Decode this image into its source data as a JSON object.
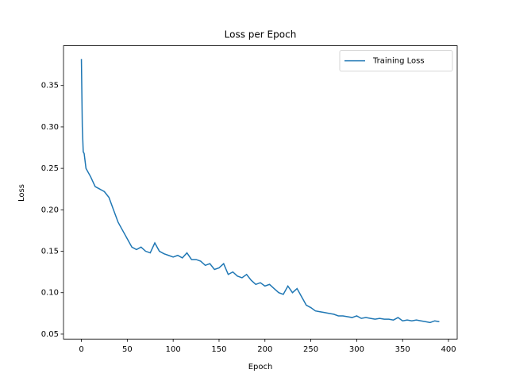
{
  "chart_data": {
    "type": "line",
    "title": "Loss per Epoch",
    "x_label": "Epoch",
    "y_label": "Loss",
    "x": [
      0,
      1,
      2,
      3,
      5,
      10,
      15,
      20,
      25,
      30,
      35,
      40,
      45,
      50,
      55,
      60,
      65,
      70,
      75,
      80,
      85,
      90,
      95,
      100,
      105,
      110,
      115,
      120,
      125,
      130,
      135,
      140,
      145,
      150,
      155,
      160,
      165,
      170,
      175,
      180,
      185,
      190,
      195,
      200,
      205,
      210,
      215,
      220,
      225,
      230,
      235,
      240,
      245,
      250,
      255,
      260,
      265,
      270,
      275,
      280,
      285,
      290,
      295,
      300,
      305,
      310,
      315,
      320,
      325,
      330,
      335,
      340,
      345,
      350,
      355,
      360,
      365,
      370,
      375,
      380,
      385,
      390
    ],
    "series": [
      {
        "name": "Training Loss",
        "color": "#1f77b4",
        "values": [
          0.382,
          0.3,
          0.27,
          0.268,
          0.25,
          0.24,
          0.228,
          0.225,
          0.222,
          0.215,
          0.2,
          0.185,
          0.175,
          0.165,
          0.155,
          0.152,
          0.155,
          0.15,
          0.148,
          0.16,
          0.15,
          0.147,
          0.145,
          0.143,
          0.145,
          0.142,
          0.148,
          0.14,
          0.14,
          0.138,
          0.133,
          0.135,
          0.128,
          0.13,
          0.135,
          0.122,
          0.125,
          0.12,
          0.118,
          0.122,
          0.115,
          0.11,
          0.112,
          0.108,
          0.11,
          0.105,
          0.1,
          0.098,
          0.108,
          0.1,
          0.105,
          0.095,
          0.085,
          0.082,
          0.078,
          0.077,
          0.076,
          0.075,
          0.074,
          0.072,
          0.072,
          0.071,
          0.07,
          0.072,
          0.069,
          0.07,
          0.069,
          0.068,
          0.069,
          0.068,
          0.068,
          0.067,
          0.07,
          0.066,
          0.067,
          0.066,
          0.067,
          0.066,
          0.065,
          0.064,
          0.066,
          0.065
        ]
      }
    ],
    "xlim": [
      -19.5,
      409.5
    ],
    "xticks": [
      0,
      50,
      100,
      150,
      200,
      250,
      300,
      350,
      400
    ],
    "ylim": [
      0.044,
      0.398
    ],
    "yticks": [
      0.05,
      {
        "value": 0.1,
        "label": "0.10"
      },
      0.15,
      {
        "value": 0.2,
        "label": "0.20"
      },
      0.25,
      {
        "value": 0.3,
        "label": "0.30"
      },
      0.35
    ],
    "legend": "upper right"
  }
}
